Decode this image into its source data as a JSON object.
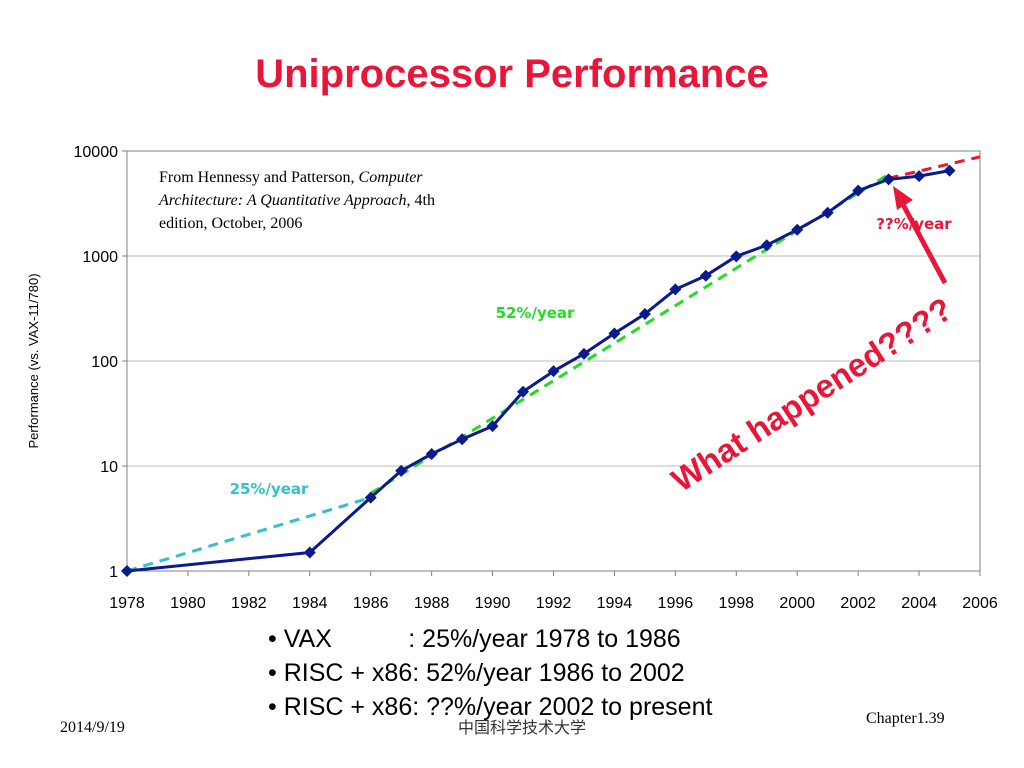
{
  "slide": {
    "title": "Uniprocessor Performance",
    "title_color": "#e8173a",
    "bullets": [
      "• VAX           : 25%/year 1978 to 1986",
      "• RISC + x86: 52%/year 1986 to 2002",
      "• RISC + x86: ??%/year 2002 to present"
    ],
    "footer": {
      "date": "2014/9/19",
      "org": "中国科学技术大学",
      "page": "Chapter1.39"
    }
  },
  "chart_data": {
    "type": "line",
    "ylabel": "Performance (vs. VAX-11/780)",
    "xlim": [
      1978,
      2006
    ],
    "ylim": [
      1,
      10000
    ],
    "y_scale": "log",
    "x_ticks": [
      "1978",
      "1980",
      "1982",
      "1984",
      "1986",
      "1988",
      "1990",
      "1992",
      "1994",
      "1996",
      "1998",
      "2000",
      "2002",
      "2004",
      "2006"
    ],
    "y_ticks": [
      "1",
      "10",
      "100",
      "1000",
      "10000"
    ],
    "grid": true,
    "series": [
      {
        "color": "#0b1a8c",
        "marker": "diamond",
        "x": [
          1978,
          1984,
          1986,
          1987,
          1988,
          1989,
          1990,
          1991,
          1992,
          1993,
          1994,
          1995,
          1996,
          1997,
          1998,
          1999,
          2000,
          2001,
          2002,
          2003,
          2004,
          2005
        ],
        "y": [
          1,
          1.5,
          5,
          9,
          13,
          18,
          24,
          51,
          80,
          117,
          183,
          280,
          481,
          649,
          993,
          1267,
          1779,
          2584,
          4195,
          5364,
          5764,
          6505
        ]
      }
    ],
    "trend_lines": [
      {
        "label": "25%/year",
        "color": "#33c0cc",
        "x": [
          1978,
          1986
        ],
        "y": [
          1,
          5
        ]
      },
      {
        "label": "52%/year",
        "color": "#22dd22",
        "x": [
          1986,
          2003
        ],
        "y": [
          5.5,
          6000
        ]
      },
      {
        "label": "??%/year",
        "color": "#e8173a",
        "x": [
          2003,
          2006
        ],
        "y": [
          5500,
          8800
        ]
      }
    ],
    "annotations": {
      "source_prefix": "From Hennessy and Patterson, ",
      "source_italic": "Computer Architecture: A Quantitative Approach",
      "source_suffix": ", 4th edition, October, 2006",
      "what_happened": "What happened????",
      "what_happened_color": "#e8173a"
    }
  }
}
